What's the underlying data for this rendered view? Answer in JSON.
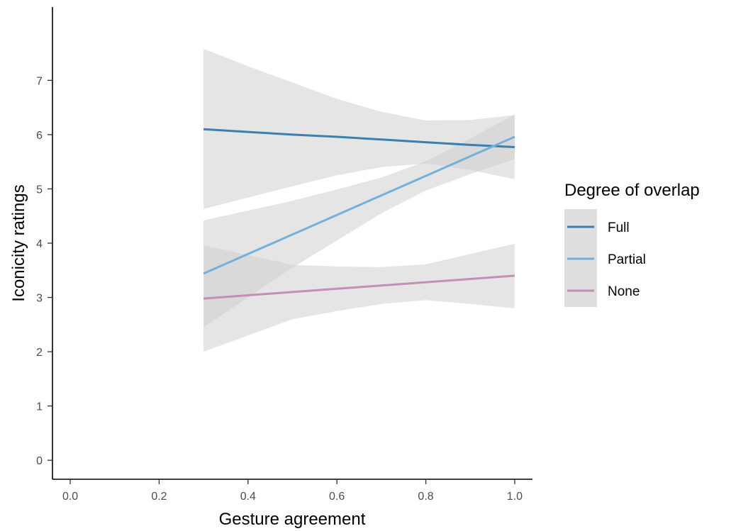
{
  "chart_data": {
    "type": "line",
    "xlabel": "Gesture agreement",
    "ylabel": "Iconicity ratings",
    "xlim": [
      -0.04,
      1.04
    ],
    "ylim": [
      -0.35,
      8.35
    ],
    "x_ticks": [
      "0.0",
      "0.2",
      "0.4",
      "0.6",
      "0.8",
      "1.0"
    ],
    "x_tick_values": [
      0.0,
      0.2,
      0.4,
      0.6,
      0.8,
      1.0
    ],
    "y_ticks": [
      "0",
      "1",
      "2",
      "3",
      "4",
      "5",
      "6",
      "7"
    ],
    "y_tick_values": [
      0,
      1,
      2,
      3,
      4,
      5,
      6,
      7
    ],
    "grid": false,
    "legend": {
      "title": "Degree of overlap",
      "position": "right",
      "band_color": "#dedede"
    },
    "series": [
      {
        "name": "Full",
        "color": "#3a7fb0",
        "x": [
          0.3,
          0.4,
          0.5,
          0.6,
          0.7,
          0.8,
          0.9,
          1.0
        ],
        "y": [
          6.1,
          6.05,
          6.0,
          5.96,
          5.91,
          5.86,
          5.81,
          5.77
        ],
        "ci_low": [
          4.63,
          4.84,
          5.05,
          5.25,
          5.4,
          5.47,
          5.35,
          5.18
        ],
        "ci_high": [
          7.58,
          7.26,
          6.96,
          6.66,
          6.42,
          6.26,
          6.27,
          6.36
        ]
      },
      {
        "name": "Partial",
        "color": "#73b0da",
        "x": [
          0.3,
          0.4,
          0.5,
          0.6,
          0.7,
          0.8,
          0.9,
          1.0
        ],
        "y": [
          3.44,
          3.8,
          4.16,
          4.52,
          4.88,
          5.24,
          5.6,
          5.96
        ],
        "ci_low": [
          2.45,
          3.0,
          3.55,
          4.05,
          4.55,
          4.97,
          5.27,
          5.55
        ],
        "ci_high": [
          4.42,
          4.6,
          4.78,
          4.99,
          5.21,
          5.51,
          5.93,
          6.37
        ]
      },
      {
        "name": "None",
        "color": "#c48fb5",
        "x": [
          0.3,
          0.4,
          0.5,
          0.6,
          0.7,
          0.8,
          0.9,
          1.0
        ],
        "y": [
          2.98,
          3.04,
          3.1,
          3.16,
          3.22,
          3.28,
          3.34,
          3.4
        ],
        "ci_low": [
          2.0,
          2.3,
          2.6,
          2.75,
          2.88,
          2.95,
          2.88,
          2.8
        ],
        "ci_high": [
          3.96,
          3.78,
          3.6,
          3.57,
          3.56,
          3.61,
          3.8,
          3.99
        ]
      }
    ]
  }
}
